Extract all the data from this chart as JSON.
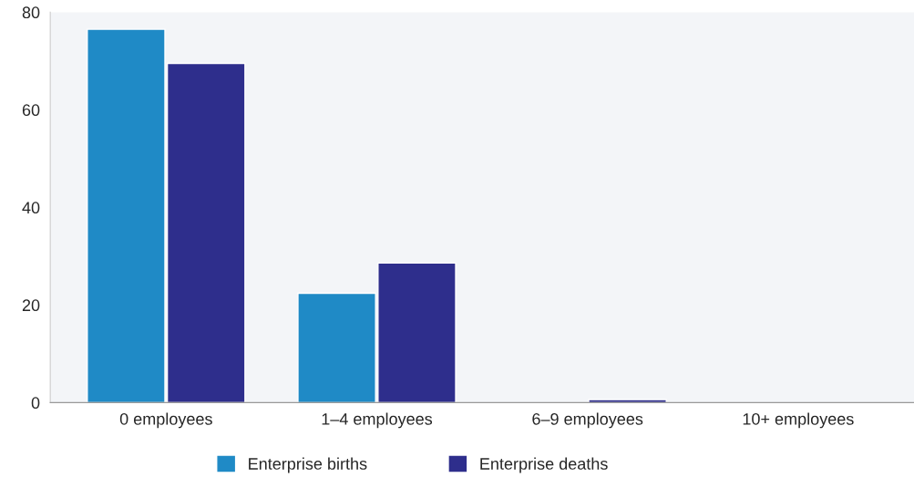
{
  "chart_data": {
    "type": "bar",
    "categories": [
      "0 employees",
      "1–4 employees",
      "6–9 employees",
      "10+ employees"
    ],
    "series": [
      {
        "name": "Enterprise births",
        "color": "#1f8ac6",
        "values": [
          76.5,
          22.4,
          null,
          null
        ]
      },
      {
        "name": "Enterprise deaths",
        "color": "#2e2e8c",
        "values": [
          69.5,
          28.6,
          0.6,
          null
        ]
      }
    ],
    "ylim": [
      0,
      80
    ],
    "yticks": [
      0,
      20,
      40,
      60,
      80
    ],
    "grid": false,
    "legend": "bottom"
  }
}
